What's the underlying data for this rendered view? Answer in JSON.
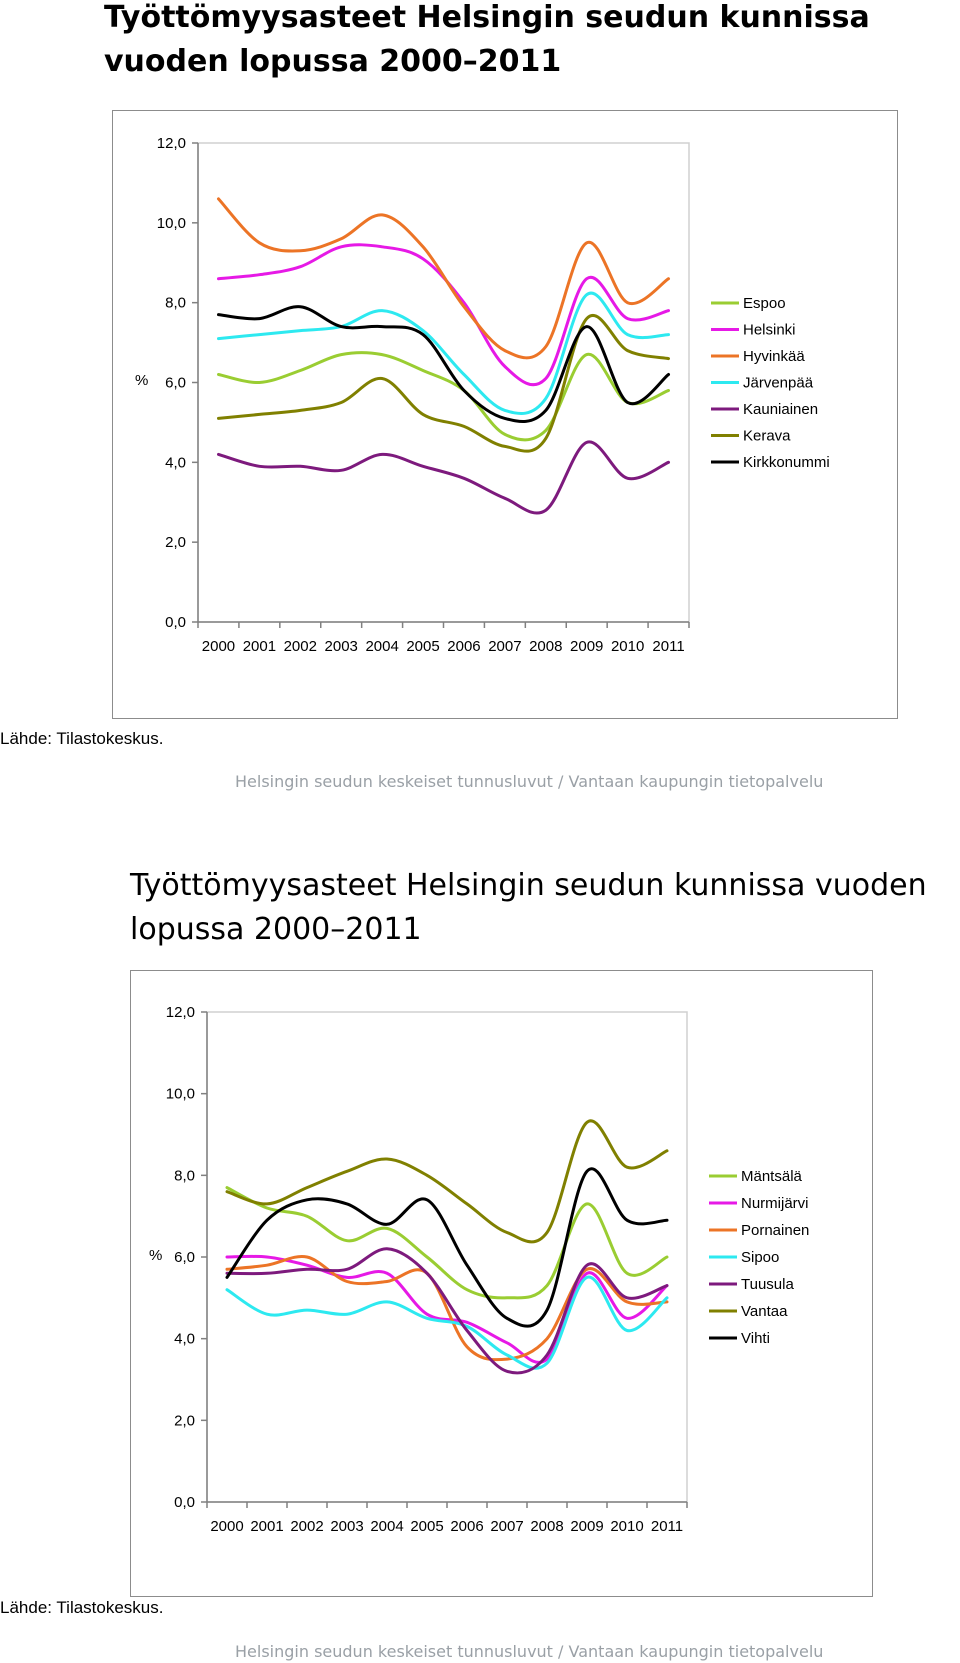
{
  "header": {
    "title_1": "Työttömyysasteet Helsingin seudun kunnissa vuoden lopussa 2000–2011",
    "title_2": "Työttömyysasteet Helsingin seudun kunnissa vuoden lopussa 2000–2011"
  },
  "source_1": "Lähde: Tilastokeskus.",
  "source_2": "Lähde: Tilastokeskus.",
  "footer_1": "Helsingin seudun keskeiset tunnusluvut / Vantaan kaupungin tietopalvelu",
  "footer_2": "Helsingin seudun keskeiset tunnusluvut / Vantaan kaupungin tietopalvelu",
  "chart_data": [
    {
      "type": "line",
      "title": "Työttömyysasteet Helsingin seudun kunnissa vuoden lopussa 2000–2011",
      "ylabel": "%",
      "xlabel": "",
      "ylim": [
        0,
        12
      ],
      "y_ticks": [
        "0,0",
        "2,0",
        "4,0",
        "6,0",
        "8,0",
        "10,0",
        "12,0"
      ],
      "x": [
        "2000",
        "2001",
        "2002",
        "2003",
        "2004",
        "2005",
        "2006",
        "2007",
        "2008",
        "2009",
        "2010",
        "2011"
      ],
      "grid": false,
      "legend": "right",
      "series": [
        {
          "name": "Espoo",
          "color": "#9acd32",
          "values": [
            6.2,
            6.0,
            6.3,
            6.7,
            6.7,
            6.3,
            5.8,
            4.7,
            4.8,
            6.7,
            5.5,
            5.8
          ]
        },
        {
          "name": "Helsinki",
          "color": "#e619e6",
          "values": [
            8.6,
            8.7,
            8.9,
            9.4,
            9.4,
            9.1,
            8.0,
            6.4,
            6.1,
            8.6,
            7.6,
            7.8
          ]
        },
        {
          "name": "Hyvinkää",
          "color": "#ec7426",
          "values": [
            10.6,
            9.5,
            9.3,
            9.6,
            10.2,
            9.4,
            7.9,
            6.8,
            6.9,
            9.5,
            8.0,
            8.6
          ]
        },
        {
          "name": "Järvenpää",
          "color": "#2de9f0",
          "values": [
            7.1,
            7.2,
            7.3,
            7.4,
            7.8,
            7.3,
            6.2,
            5.3,
            5.6,
            8.2,
            7.2,
            7.2
          ]
        },
        {
          "name": "Kauniainen",
          "color": "#7d1a7d",
          "values": [
            4.2,
            3.9,
            3.9,
            3.8,
            4.2,
            3.9,
            3.6,
            3.1,
            2.8,
            4.5,
            3.6,
            4.0
          ]
        },
        {
          "name": "Kerava",
          "color": "#808000",
          "values": [
            5.1,
            5.2,
            5.3,
            5.5,
            6.1,
            5.2,
            4.9,
            4.4,
            4.6,
            7.6,
            6.8,
            6.6
          ]
        },
        {
          "name": "Kirkkonummi",
          "color": "#000000",
          "values": [
            7.7,
            7.6,
            7.9,
            7.4,
            7.4,
            7.2,
            5.8,
            5.1,
            5.3,
            7.4,
            5.5,
            6.2
          ]
        }
      ]
    },
    {
      "type": "line",
      "title": "Työttömyysasteet Helsingin seudun kunnissa vuoden lopussa 2000–2011",
      "ylabel": "%",
      "xlabel": "",
      "ylim": [
        0,
        12
      ],
      "y_ticks": [
        "0,0",
        "2,0",
        "4,0",
        "6,0",
        "8,0",
        "10,0",
        "12,0"
      ],
      "x": [
        "2000",
        "2001",
        "2002",
        "2003",
        "2004",
        "2005",
        "2006",
        "2007",
        "2008",
        "2009",
        "2010",
        "2011"
      ],
      "grid": false,
      "legend": "right",
      "series": [
        {
          "name": "Mäntsälä",
          "color": "#9acd32",
          "values": [
            7.7,
            7.2,
            7.0,
            6.4,
            6.7,
            6.0,
            5.2,
            5.0,
            5.3,
            7.3,
            5.6,
            6.0
          ]
        },
        {
          "name": "Nurmijärvi",
          "color": "#e619e6",
          "values": [
            6.0,
            6.0,
            5.8,
            5.5,
            5.6,
            4.6,
            4.4,
            3.9,
            3.5,
            5.6,
            4.5,
            5.3
          ]
        },
        {
          "name": "Pornainen",
          "color": "#ec7426",
          "values": [
            5.7,
            5.8,
            6.0,
            5.4,
            5.4,
            5.6,
            3.8,
            3.5,
            4.0,
            5.7,
            4.9,
            4.9
          ]
        },
        {
          "name": "Sipoo",
          "color": "#2de9f0",
          "values": [
            5.2,
            4.6,
            4.7,
            4.6,
            4.9,
            4.5,
            4.3,
            3.6,
            3.4,
            5.5,
            4.2,
            5.0
          ]
        },
        {
          "name": "Tuusula",
          "color": "#7d1a7d",
          "values": [
            5.6,
            5.6,
            5.7,
            5.7,
            6.2,
            5.6,
            4.2,
            3.2,
            3.6,
            5.8,
            5.0,
            5.3
          ]
        },
        {
          "name": "Vantaa",
          "color": "#808000",
          "values": [
            7.6,
            7.3,
            7.7,
            8.1,
            8.4,
            8.0,
            7.3,
            6.6,
            6.6,
            9.3,
            8.2,
            8.6
          ]
        },
        {
          "name": "Vihti",
          "color": "#000000",
          "values": [
            5.5,
            6.9,
            7.4,
            7.3,
            6.8,
            7.4,
            5.8,
            4.5,
            4.7,
            8.1,
            6.9,
            6.9
          ]
        }
      ]
    }
  ]
}
